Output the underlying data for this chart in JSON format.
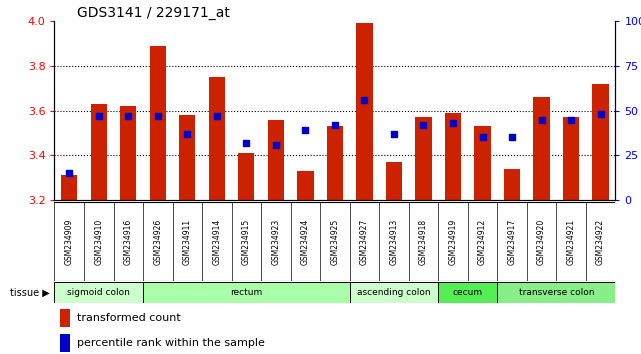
{
  "title": "GDS3141 / 229171_at",
  "samples": [
    "GSM234909",
    "GSM234910",
    "GSM234916",
    "GSM234926",
    "GSM234911",
    "GSM234914",
    "GSM234915",
    "GSM234923",
    "GSM234924",
    "GSM234925",
    "GSM234927",
    "GSM234913",
    "GSM234918",
    "GSM234919",
    "GSM234912",
    "GSM234917",
    "GSM234920",
    "GSM234921",
    "GSM234922"
  ],
  "bar_values": [
    3.31,
    3.63,
    3.62,
    3.89,
    3.58,
    3.75,
    3.41,
    3.56,
    3.33,
    3.53,
    3.99,
    3.37,
    3.57,
    3.59,
    3.53,
    3.34,
    3.66,
    3.57,
    3.72
  ],
  "dot_pct": [
    15,
    47,
    47,
    47,
    37,
    47,
    32,
    31,
    39,
    42,
    56,
    37,
    42,
    43,
    35,
    35,
    45,
    45,
    48
  ],
  "ylim": [
    3.2,
    4.0
  ],
  "yticks": [
    3.2,
    3.4,
    3.6,
    3.8,
    4.0
  ],
  "right_yticks": [
    0,
    25,
    50,
    75,
    100
  ],
  "right_ylabels": [
    "0",
    "25",
    "50",
    "75",
    "100%"
  ],
  "bar_color": "#cc2200",
  "dot_color": "#0000cc",
  "tissue_groups": [
    {
      "label": "sigmoid colon",
      "start": 0,
      "end": 3,
      "color": "#ccffcc"
    },
    {
      "label": "rectum",
      "start": 3,
      "end": 10,
      "color": "#aaffaa"
    },
    {
      "label": "ascending colon",
      "start": 10,
      "end": 13,
      "color": "#ccffcc"
    },
    {
      "label": "cecum",
      "start": 13,
      "end": 15,
      "color": "#55ee55"
    },
    {
      "label": "transverse colon",
      "start": 15,
      "end": 19,
      "color": "#88ee88"
    }
  ],
  "legend_bar_label": "transformed count",
  "legend_dot_label": "percentile rank within the sample",
  "base_value": 3.2,
  "right_top_label": "100%",
  "right_zero_label": "0"
}
